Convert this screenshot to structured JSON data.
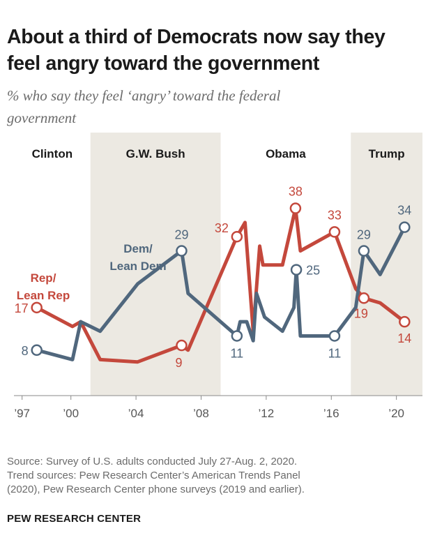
{
  "header": {
    "title_line1": "About a third of Democrats now say they",
    "title_line2": "feel angry toward the government",
    "subtitle_line1": "% who say they feel ‘angry’ toward the federal",
    "subtitle_line2": "government"
  },
  "footer": {
    "source_line1": "Source: Survey of U.S. adults conducted July 27-Aug. 2, 2020.",
    "source_line2": "Trend sources: Pew Research Center’s American Trends Panel",
    "source_line3": "(2020), Pew Research Center phone surveys (2019 and earlier).",
    "brand": "PEW RESEARCH CENTER"
  },
  "chart_data": {
    "type": "line",
    "title": "About a third of Democrats now say they feel angry toward the government",
    "subtitle": "% who say they feel ‘angry’ toward the federal government",
    "xlim": [
      1996.5,
      2021.6
    ],
    "ylim": [
      0,
      40
    ],
    "x_ticks": [
      {
        "value": 1997,
        "label": "’97"
      },
      {
        "value": 2000,
        "label": "’00"
      },
      {
        "value": 2004,
        "label": "’04"
      },
      {
        "value": 2008,
        "label": "’08"
      },
      {
        "value": 2012,
        "label": "’12"
      },
      {
        "value": 2016,
        "label": "’16"
      },
      {
        "value": 2020,
        "label": "’20"
      }
    ],
    "grid": false,
    "eras": [
      {
        "name": "Clinton",
        "start": 1996.5,
        "end": 2001.2,
        "shaded": false
      },
      {
        "name": "G.W. Bush",
        "start": 2001.2,
        "end": 2009.2,
        "shaded": true
      },
      {
        "name": "Obama",
        "start": 2009.2,
        "end": 2017.2,
        "shaded": false
      },
      {
        "name": "Trump",
        "start": 2017.2,
        "end": 2021.6,
        "shaded": true
      }
    ],
    "colors": {
      "rep": "#c4483c",
      "dem": "#50677d",
      "shade": "#ece9e2"
    },
    "series": [
      {
        "name": "Rep/ Lean Rep",
        "label_lines": [
          "Rep/",
          "Lean Rep"
        ],
        "color": "#c4483c",
        "x": [
          1997.9,
          2000.1,
          2000.6,
          2001.8,
          2004.1,
          2006.8,
          2007.2,
          2010.2,
          2010.7,
          2011.2,
          2011.6,
          2011.8,
          2013.0,
          2013.8,
          2014.1,
          2016.2,
          2017.5,
          2018.0,
          2019.0,
          2020.5
        ],
        "y": [
          17,
          13,
          14,
          6,
          5.5,
          9,
          8,
          32,
          35,
          12,
          30,
          26,
          26,
          38,
          29,
          33,
          21,
          19,
          18,
          14
        ],
        "labels": [
          {
            "index": 0,
            "text": "17"
          },
          {
            "index": 5,
            "text": "9"
          },
          {
            "index": 7,
            "text": "32"
          },
          {
            "index": 13,
            "text": "38"
          },
          {
            "index": 15,
            "text": "33"
          },
          {
            "index": 17,
            "text": "19"
          },
          {
            "index": 19,
            "text": "14"
          }
        ]
      },
      {
        "name": "Dem/ Lean Dem",
        "label_lines": [
          "Dem/",
          "Lean Dem"
        ],
        "color": "#50677d",
        "x": [
          1997.9,
          2000.1,
          2000.6,
          2001.8,
          2004.1,
          2006.8,
          2007.2,
          2010.2,
          2010.4,
          2010.8,
          2011.2,
          2011.4,
          2011.9,
          2013.0,
          2013.7,
          2013.85,
          2014.1,
          2016.2,
          2017.5,
          2018.0,
          2019.0,
          2020.5
        ],
        "y": [
          8,
          6,
          14,
          12,
          22,
          29,
          20,
          11,
          14,
          14,
          10,
          20,
          15,
          12,
          17,
          25,
          11,
          11,
          17,
          29,
          24,
          34
        ],
        "labels": [
          {
            "index": 0,
            "text": "8"
          },
          {
            "index": 5,
            "text": "29"
          },
          {
            "index": 7,
            "text": "11"
          },
          {
            "index": 15,
            "text": "25"
          },
          {
            "index": 17,
            "text": "11"
          },
          {
            "index": 19,
            "text": "29"
          },
          {
            "index": 21,
            "text": "34"
          }
        ]
      }
    ]
  }
}
